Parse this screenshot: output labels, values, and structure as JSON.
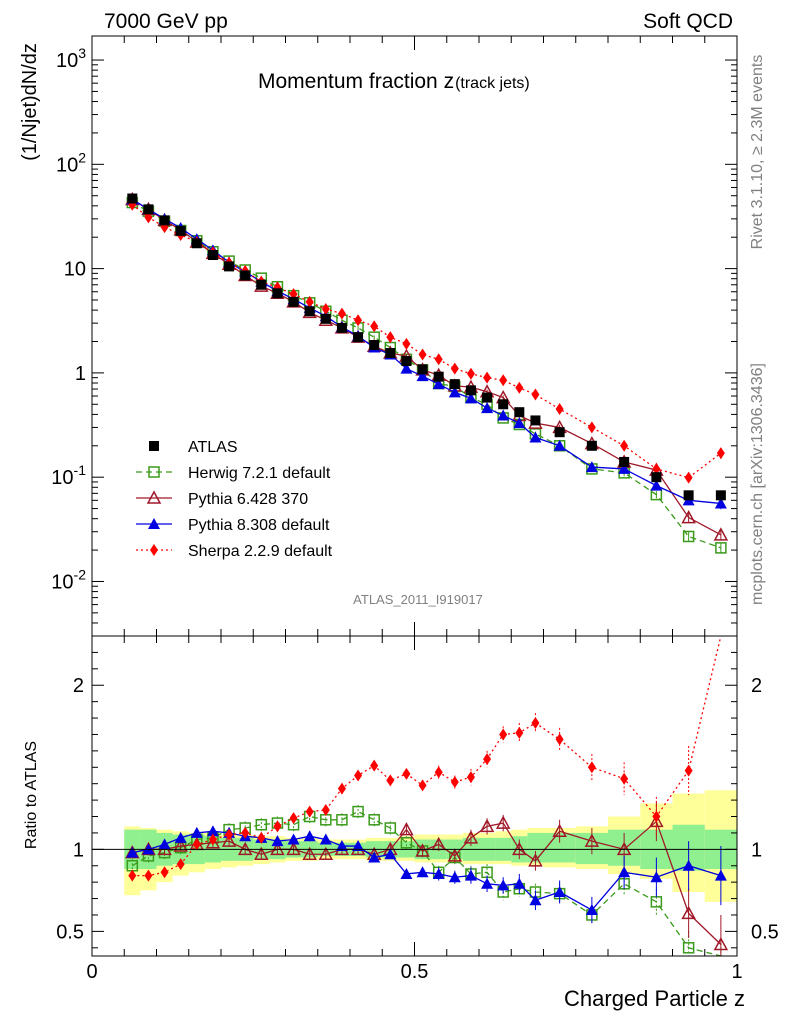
{
  "header": {
    "left": "7000 GeV pp",
    "right": "Soft QCD"
  },
  "side_labels": {
    "top": "Rivet 3.1.10, ≥ 2.3M events",
    "bottom": "mcplots.cern.ch [arXiv:1306.3436]"
  },
  "analysis_id": "ATLAS_2011_I919017",
  "colors": {
    "ATLAS": "#000000",
    "Herwig": "#3a9a1a",
    "Pythia6": "#a01828",
    "Pythia8": "#0000e0",
    "Sherpa": "#ff0000",
    "band_inner": "#90f090",
    "band_outer": "#ffff99"
  },
  "chart_data": [
    {
      "type": "line",
      "title": "Momentum fraction z",
      "title_sub": "(track jets)",
      "ylabel": "(1/Njet)dN/dz",
      "yscale": "log",
      "ylim": [
        0.003,
        1700
      ],
      "xlim": [
        0,
        1
      ],
      "ytick_labels": [
        "10^-2",
        "10^-1",
        "1",
        "10",
        "10^2",
        "10^3"
      ],
      "legend_position": "lower-left",
      "x": [
        0.0625,
        0.0875,
        0.1125,
        0.1375,
        0.1625,
        0.1875,
        0.2125,
        0.2375,
        0.2625,
        0.2875,
        0.3125,
        0.3375,
        0.3625,
        0.3875,
        0.4125,
        0.4375,
        0.4625,
        0.4875,
        0.5125,
        0.5375,
        0.5625,
        0.5875,
        0.6125,
        0.6375,
        0.6625,
        0.6875,
        0.725,
        0.775,
        0.825,
        0.875,
        0.925,
        0.975
      ],
      "series": [
        {
          "name": "ATLAS",
          "style": "data",
          "marker": "square-filled",
          "color": "#000000",
          "values": [
            47,
            37,
            29,
            23,
            17.5,
            13.5,
            10.5,
            8.6,
            7,
            5.8,
            4.8,
            3.9,
            3.3,
            2.7,
            2.2,
            1.85,
            1.55,
            1.3,
            1.08,
            0.92,
            0.78,
            0.68,
            0.58,
            0.5,
            0.42,
            0.35,
            0.27,
            0.2,
            0.14,
            0.1,
            0.067,
            0.067
          ]
        },
        {
          "name": "Herwig 7.2.1 default",
          "style": "dashed",
          "marker": "square-open",
          "color": "#3a9a1a",
          "values": [
            43,
            35.5,
            28.5,
            23.2,
            18.5,
            14.5,
            11.8,
            9.7,
            8.1,
            6.7,
            5.5,
            4.7,
            3.9,
            3.2,
            2.7,
            2.2,
            1.75,
            1.35,
            1.07,
            0.79,
            0.74,
            0.58,
            0.5,
            0.37,
            0.32,
            0.26,
            0.2,
            0.12,
            0.11,
            0.068,
            0.027,
            0.021
          ],
          "err": [
            0.04,
            0.04,
            0.04,
            0.04,
            0.04,
            0.04,
            0.04,
            0.04,
            0.04,
            0.04,
            0.04,
            0.04,
            0.04,
            0.04,
            0.04,
            0.04,
            0.04,
            0.04,
            0.04,
            0.04,
            0.04,
            0.05,
            0.05,
            0.05,
            0.05,
            0.05,
            0.06,
            0.06,
            0.07,
            0.08,
            0.1,
            0.12
          ]
        },
        {
          "name": "Pythia 6.428 370",
          "style": "solid",
          "marker": "triangle-open",
          "color": "#a01828",
          "values": [
            46,
            37,
            29,
            23.5,
            18,
            14,
            11,
            8.6,
            6.8,
            5.8,
            4.8,
            3.8,
            3.2,
            2.7,
            2.2,
            1.8,
            1.55,
            1.45,
            1.07,
            0.95,
            0.75,
            0.73,
            0.66,
            0.58,
            0.39,
            0.33,
            0.3,
            0.21,
            0.14,
            0.117,
            0.041,
            0.028
          ],
          "err": [
            0.04,
            0.04,
            0.04,
            0.04,
            0.04,
            0.04,
            0.04,
            0.04,
            0.04,
            0.04,
            0.04,
            0.04,
            0.04,
            0.04,
            0.04,
            0.04,
            0.04,
            0.04,
            0.04,
            0.04,
            0.04,
            0.05,
            0.05,
            0.05,
            0.05,
            0.05,
            0.06,
            0.06,
            0.07,
            0.08,
            0.1,
            0.12
          ]
        },
        {
          "name": "Pythia 8.308 default",
          "style": "solid",
          "marker": "triangle-filled",
          "color": "#0000e0",
          "values": [
            46,
            37,
            30,
            24.5,
            19.2,
            15,
            11.5,
            9.3,
            7.5,
            6.1,
            5.1,
            4.2,
            3.5,
            2.75,
            2.25,
            1.75,
            1.5,
            1.1,
            0.93,
            0.78,
            0.65,
            0.57,
            0.46,
            0.39,
            0.33,
            0.24,
            0.2,
            0.125,
            0.12,
            0.083,
            0.06,
            0.056
          ],
          "err": [
            0.04,
            0.04,
            0.04,
            0.04,
            0.04,
            0.04,
            0.04,
            0.04,
            0.04,
            0.04,
            0.04,
            0.04,
            0.04,
            0.04,
            0.04,
            0.04,
            0.04,
            0.04,
            0.04,
            0.04,
            0.04,
            0.05,
            0.05,
            0.05,
            0.05,
            0.05,
            0.06,
            0.06,
            0.07,
            0.08,
            0.1,
            0.12
          ]
        },
        {
          "name": "Sherpa 2.2.9 default",
          "style": "dotted",
          "marker": "diamond-filled",
          "color": "#ff0000",
          "values": [
            41,
            31,
            25,
            21,
            18,
            14.3,
            11.4,
            9.5,
            7.5,
            6.6,
            5.7,
            4.8,
            4.1,
            3.7,
            3.2,
            2.8,
            2.2,
            1.9,
            1.5,
            1.35,
            1.1,
            0.98,
            0.9,
            0.85,
            0.72,
            0.62,
            0.45,
            0.3,
            0.2,
            0.12,
            0.099,
            0.17
          ],
          "err": [
            0.04,
            0.04,
            0.04,
            0.04,
            0.04,
            0.04,
            0.04,
            0.04,
            0.04,
            0.04,
            0.04,
            0.04,
            0.04,
            0.04,
            0.04,
            0.04,
            0.04,
            0.04,
            0.04,
            0.04,
            0.04,
            0.05,
            0.05,
            0.05,
            0.05,
            0.05,
            0.06,
            0.06,
            0.07,
            0.08,
            0.1,
            0.12
          ]
        }
      ]
    },
    {
      "type": "line",
      "ylabel": "Ratio to ATLAS",
      "xlabel": "Charged Particle z",
      "ylim": [
        0.35,
        2.3
      ],
      "xlim": [
        0,
        1
      ],
      "x_tick_labels": [
        "0",
        "0.5",
        "1"
      ],
      "y_tick_labels": [
        "0.5",
        "1",
        "2"
      ],
      "x_edges": [
        0.05,
        0.075,
        0.1,
        0.125,
        0.15,
        0.175,
        0.2,
        0.225,
        0.25,
        0.275,
        0.3,
        0.325,
        0.35,
        0.375,
        0.4,
        0.425,
        0.45,
        0.475,
        0.5,
        0.525,
        0.55,
        0.575,
        0.6,
        0.625,
        0.65,
        0.675,
        0.7,
        0.75,
        0.8,
        0.85,
        0.9,
        0.95,
        1.0
      ],
      "band_inner": [
        [
          0.88,
          1.12
        ],
        [
          0.88,
          1.12
        ],
        [
          0.9,
          1.1
        ],
        [
          0.91,
          1.09
        ],
        [
          0.91,
          1.09
        ],
        [
          0.92,
          1.08
        ],
        [
          0.93,
          1.07
        ],
        [
          0.93,
          1.07
        ],
        [
          0.94,
          1.06
        ],
        [
          0.94,
          1.06
        ],
        [
          0.95,
          1.05
        ],
        [
          0.95,
          1.05
        ],
        [
          0.96,
          1.04
        ],
        [
          0.96,
          1.04
        ],
        [
          0.96,
          1.04
        ],
        [
          0.95,
          1.05
        ],
        [
          0.95,
          1.05
        ],
        [
          0.95,
          1.05
        ],
        [
          0.94,
          1.06
        ],
        [
          0.94,
          1.06
        ],
        [
          0.94,
          1.06
        ],
        [
          0.93,
          1.07
        ],
        [
          0.93,
          1.07
        ],
        [
          0.93,
          1.07
        ],
        [
          0.92,
          1.08
        ],
        [
          0.92,
          1.1
        ],
        [
          0.92,
          1.1
        ],
        [
          0.91,
          1.1
        ],
        [
          0.9,
          1.12
        ],
        [
          0.88,
          1.12
        ],
        [
          0.87,
          1.15
        ],
        [
          0.88,
          1.12
        ]
      ],
      "band_outer": [
        [
          0.72,
          1.14
        ],
        [
          0.75,
          1.13
        ],
        [
          0.8,
          1.12
        ],
        [
          0.84,
          1.11
        ],
        [
          0.86,
          1.1
        ],
        [
          0.88,
          1.1
        ],
        [
          0.89,
          1.09
        ],
        [
          0.9,
          1.09
        ],
        [
          0.91,
          1.08
        ],
        [
          0.92,
          1.08
        ],
        [
          0.93,
          1.07
        ],
        [
          0.93,
          1.07
        ],
        [
          0.94,
          1.06
        ],
        [
          0.94,
          1.06
        ],
        [
          0.94,
          1.06
        ],
        [
          0.93,
          1.07
        ],
        [
          0.93,
          1.07
        ],
        [
          0.93,
          1.08
        ],
        [
          0.92,
          1.09
        ],
        [
          0.92,
          1.09
        ],
        [
          0.92,
          1.09
        ],
        [
          0.91,
          1.1
        ],
        [
          0.91,
          1.1
        ],
        [
          0.91,
          1.11
        ],
        [
          0.9,
          1.12
        ],
        [
          0.9,
          1.13
        ],
        [
          0.89,
          1.13
        ],
        [
          0.88,
          1.14
        ],
        [
          0.85,
          1.2
        ],
        [
          0.82,
          1.28
        ],
        [
          0.74,
          1.34
        ],
        [
          0.68,
          1.36
        ]
      ],
      "series": [
        {
          "name": "Herwig 7.2.1 default",
          "values": [
            0.9,
            0.96,
            0.98,
            1.01,
            1.06,
            1.07,
            1.12,
            1.13,
            1.15,
            1.16,
            1.15,
            1.2,
            1.18,
            1.18,
            1.23,
            1.18,
            1.13,
            1.04,
            0.99,
            0.86,
            0.95,
            0.85,
            0.86,
            0.74,
            0.76,
            0.74,
            0.73,
            0.6,
            0.79,
            0.68,
            0.4,
            0.31
          ]
        },
        {
          "name": "Pythia 6.428 370",
          "values": [
            0.98,
            1.0,
            1.0,
            1.02,
            1.03,
            1.04,
            1.05,
            1.0,
            0.97,
            1.0,
            1.0,
            0.97,
            0.97,
            1.0,
            1.0,
            0.97,
            1.0,
            1.12,
            0.99,
            1.03,
            0.96,
            1.07,
            1.14,
            1.16,
            1.0,
            0.93,
            1.11,
            1.05,
            1.0,
            1.17,
            0.61,
            0.42
          ],
          "err": [
            0.03,
            0.03,
            0.03,
            0.03,
            0.03,
            0.03,
            0.03,
            0.03,
            0.03,
            0.03,
            0.03,
            0.03,
            0.03,
            0.03,
            0.03,
            0.03,
            0.03,
            0.03,
            0.03,
            0.04,
            0.04,
            0.05,
            0.05,
            0.05,
            0.06,
            0.06,
            0.07,
            0.08,
            0.1,
            0.12,
            0.15,
            0.18
          ]
        },
        {
          "name": "Pythia 8.308 default",
          "values": [
            0.98,
            1.0,
            1.03,
            1.07,
            1.1,
            1.11,
            1.1,
            1.08,
            1.07,
            1.05,
            1.06,
            1.08,
            1.06,
            1.02,
            1.02,
            0.95,
            0.97,
            0.85,
            0.86,
            0.85,
            0.83,
            0.84,
            0.79,
            0.78,
            0.79,
            0.69,
            0.74,
            0.63,
            0.86,
            0.83,
            0.9,
            0.84
          ],
          "err": [
            0.03,
            0.03,
            0.03,
            0.03,
            0.03,
            0.03,
            0.03,
            0.03,
            0.03,
            0.03,
            0.03,
            0.03,
            0.03,
            0.03,
            0.03,
            0.03,
            0.03,
            0.03,
            0.03,
            0.04,
            0.04,
            0.05,
            0.05,
            0.05,
            0.06,
            0.06,
            0.07,
            0.08,
            0.1,
            0.12,
            0.15,
            0.18
          ]
        },
        {
          "name": "Sherpa 2.2.9 default",
          "values": [
            0.84,
            0.84,
            0.86,
            0.91,
            1.03,
            1.06,
            1.09,
            1.1,
            1.07,
            1.14,
            1.19,
            1.23,
            1.24,
            1.37,
            1.45,
            1.51,
            1.42,
            1.46,
            1.39,
            1.47,
            1.41,
            1.44,
            1.55,
            1.7,
            1.71,
            1.77,
            1.67,
            1.5,
            1.43,
            1.2,
            1.48,
            2.54
          ],
          "err": [
            0.03,
            0.03,
            0.03,
            0.03,
            0.03,
            0.03,
            0.03,
            0.03,
            0.03,
            0.03,
            0.03,
            0.03,
            0.03,
            0.03,
            0.03,
            0.03,
            0.03,
            0.03,
            0.03,
            0.04,
            0.04,
            0.05,
            0.05,
            0.05,
            0.06,
            0.06,
            0.07,
            0.08,
            0.1,
            0.12,
            0.15,
            0.18
          ]
        }
      ]
    }
  ]
}
